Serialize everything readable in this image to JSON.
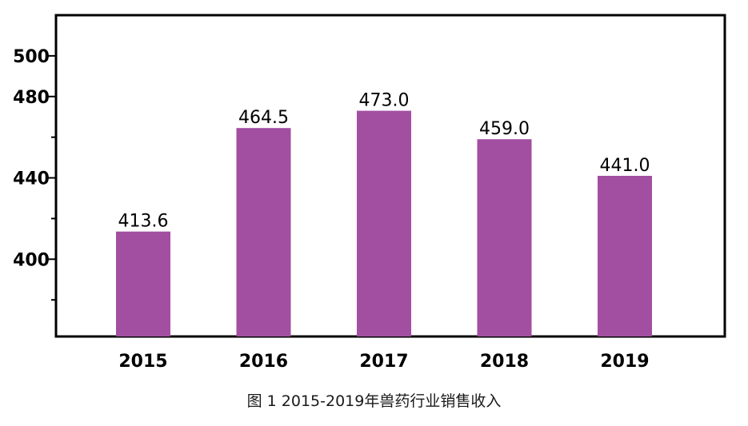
{
  "caption": "图 1 2015-2019年兽药行业销售收入",
  "colors": {
    "bar": "#a24ea1",
    "axis": "#000000",
    "text": "#000000"
  },
  "chart_data": {
    "type": "bar",
    "title": "",
    "xlabel": "",
    "ylabel": "",
    "categories": [
      "2015",
      "2016",
      "2017",
      "2018",
      "2019"
    ],
    "values": [
      413.6,
      464.5,
      473.0,
      459.0,
      441.0
    ],
    "data_labels": [
      "413.6",
      "464.5",
      "473.0",
      "459.0",
      "441.0"
    ],
    "ylim": [
      362,
      520
    ],
    "yticks": [
      400,
      440,
      480,
      500
    ],
    "grid": false,
    "legend": "none"
  }
}
